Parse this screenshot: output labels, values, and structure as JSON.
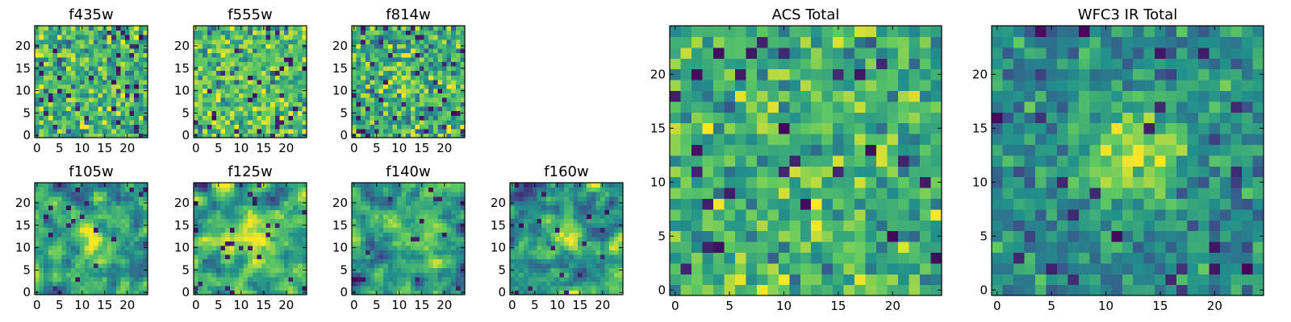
{
  "chart_data": {
    "type": "heatmap",
    "colormap": "viridis",
    "colormap_stops": [
      "#440154",
      "#3b528b",
      "#21918c",
      "#5ec962",
      "#fde725"
    ],
    "panels": [
      {
        "title": "f435w",
        "grid_size": 25,
        "xticks": [
          0,
          5,
          10,
          15,
          20
        ],
        "yticks": [
          0,
          5,
          10,
          15,
          20
        ],
        "xlim": [
          -0.5,
          24.5
        ],
        "ylim": [
          -0.5,
          24.5
        ],
        "value_range": [
          0,
          1
        ],
        "description": "noise-like pixel field, mostly green-yellow, scattered dark pixels",
        "noise_seed": 11,
        "base": 0.66,
        "spread": 0.17,
        "peak_amp": 0.02,
        "dark_fraction": 0.05,
        "smooth": 0
      },
      {
        "title": "f555w",
        "grid_size": 25,
        "xticks": [
          0,
          5,
          10,
          15,
          20
        ],
        "yticks": [
          0,
          5,
          10,
          15,
          20
        ],
        "xlim": [
          -0.5,
          24.5
        ],
        "ylim": [
          -0.5,
          24.5
        ],
        "value_range": [
          0,
          1
        ],
        "description": "noise-like pixel field, bright green-yellow, scattered dark pixels",
        "noise_seed": 23,
        "base": 0.7,
        "spread": 0.16,
        "peak_amp": 0.02,
        "dark_fraction": 0.05,
        "smooth": 0
      },
      {
        "title": "f814w",
        "grid_size": 25,
        "xticks": [
          0,
          5,
          10,
          15,
          20
        ],
        "yticks": [
          0,
          5,
          10,
          15,
          20
        ],
        "xlim": [
          -0.5,
          24.5
        ],
        "ylim": [
          -0.5,
          24.5
        ],
        "value_range": [
          0,
          1
        ],
        "description": "noise-like pixel field, green-yellow with faint central brightening",
        "noise_seed": 37,
        "base": 0.64,
        "spread": 0.17,
        "peak_amp": 0.08,
        "dark_fraction": 0.05,
        "smooth": 0
      },
      {
        "title": "f105w",
        "grid_size": 25,
        "xticks": [
          0,
          5,
          10,
          15,
          20
        ],
        "yticks": [
          0,
          5,
          10,
          15,
          20
        ],
        "xlim": [
          -0.5,
          24.5
        ],
        "ylim": [
          -0.5,
          24.5
        ],
        "value_range": [
          0,
          1
        ],
        "description": "smoothed field, bright blob near center (13,12), dark patches",
        "noise_seed": 51,
        "base": 0.55,
        "spread": 0.22,
        "peak_amp": 0.3,
        "dark_fraction": 0.03,
        "smooth": 1
      },
      {
        "title": "f125w",
        "grid_size": 25,
        "xticks": [
          0,
          5,
          10,
          15,
          20
        ],
        "yticks": [
          0,
          5,
          10,
          15,
          20
        ],
        "xlim": [
          -0.5,
          24.5
        ],
        "ylim": [
          -0.5,
          24.5
        ],
        "value_range": [
          0,
          1
        ],
        "description": "smoothed field, bright yellow central structure, dark patches",
        "noise_seed": 67,
        "base": 0.58,
        "spread": 0.22,
        "peak_amp": 0.32,
        "dark_fraction": 0.03,
        "smooth": 1
      },
      {
        "title": "f140w",
        "grid_size": 25,
        "xticks": [
          0,
          5,
          10,
          15,
          20
        ],
        "yticks": [
          0,
          5,
          10,
          15,
          20
        ],
        "xlim": [
          -0.5,
          24.5
        ],
        "ylim": [
          -0.5,
          24.5
        ],
        "value_range": [
          0,
          1
        ],
        "description": "smoothed field, central brightening, dark patches near edges",
        "noise_seed": 79,
        "base": 0.55,
        "spread": 0.22,
        "peak_amp": 0.28,
        "dark_fraction": 0.03,
        "smooth": 1
      },
      {
        "title": "f160w",
        "grid_size": 25,
        "xticks": [
          0,
          5,
          10,
          15,
          20
        ],
        "yticks": [
          0,
          5,
          10,
          15,
          20
        ],
        "xlim": [
          -0.5,
          24.5
        ],
        "ylim": [
          -0.5,
          24.5
        ],
        "value_range": [
          0,
          1
        ],
        "description": "smoothed field, diagonal bright band through center, darker surroundings",
        "noise_seed": 97,
        "base": 0.5,
        "spread": 0.24,
        "peak_amp": 0.3,
        "dark_fraction": 0.03,
        "smooth": 1
      },
      {
        "title": "ACS Total",
        "grid_size": 25,
        "xticks": [
          0,
          5,
          10,
          15,
          20
        ],
        "yticks": [
          0,
          5,
          10,
          15,
          20
        ],
        "xlim": [
          -0.5,
          24.5
        ],
        "ylim": [
          -0.5,
          24.5
        ],
        "value_range": [
          0,
          1
        ],
        "description": "green-yellow pixel field, scattered dark purple pixels",
        "noise_seed": 113,
        "base": 0.64,
        "spread": 0.15,
        "peak_amp": 0.08,
        "dark_fraction": 0.04,
        "smooth": 0
      },
      {
        "title": "WFC3 IR Total",
        "grid_size": 25,
        "xticks": [
          0,
          5,
          10,
          15,
          20
        ],
        "yticks": [
          0,
          5,
          10,
          15,
          20
        ],
        "xlim": [
          -0.5,
          24.5
        ],
        "ylim": [
          -0.5,
          24.5
        ],
        "value_range": [
          0,
          1
        ],
        "description": "teal-green field with bright yellow peak near (13,13), scattered dark pixels",
        "noise_seed": 131,
        "base": 0.47,
        "spread": 0.12,
        "peak_amp": 0.45,
        "dark_fraction": 0.03,
        "smooth": 0
      }
    ]
  }
}
